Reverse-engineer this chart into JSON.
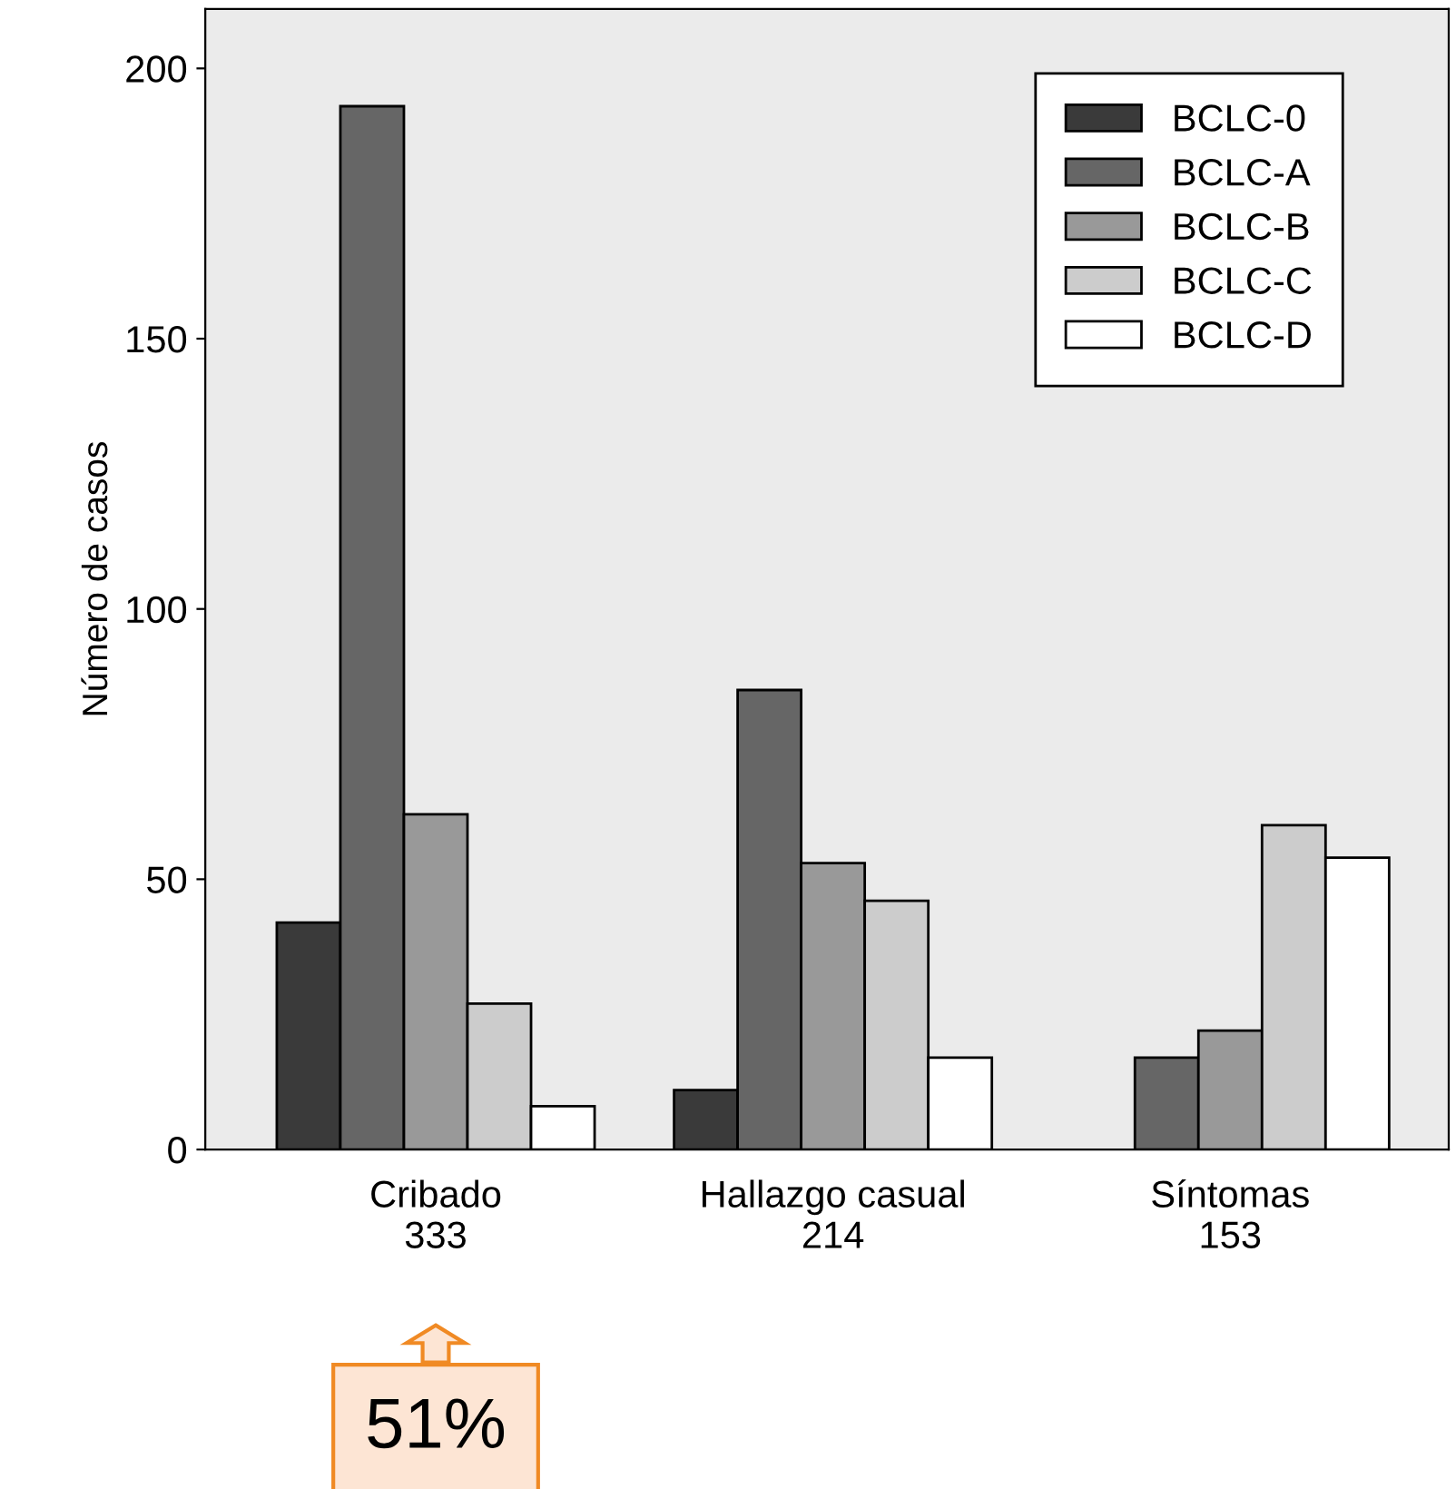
{
  "chart_data": {
    "type": "bar",
    "ylabel": "Número de casos",
    "categories": [
      "Cribado\n333",
      "Hallazgo casual\n214",
      "Síntomas\n153"
    ],
    "series": [
      {
        "name": "BCLC-0",
        "color": "#3a3a3a",
        "values": [
          42,
          11,
          null
        ]
      },
      {
        "name": "BCLC-A",
        "color": "#666666",
        "values": [
          193,
          85,
          17
        ]
      },
      {
        "name": "BCLC-B",
        "color": "#999999",
        "values": [
          62,
          53,
          22
        ]
      },
      {
        "name": "BCLC-C",
        "color": "#cccccc",
        "values": [
          27,
          46,
          60
        ]
      },
      {
        "name": "BCLC-D",
        "color": "#ffffff",
        "values": [
          8,
          17,
          54
        ]
      }
    ],
    "ylim": [
      0,
      211
    ],
    "yticks": [
      0,
      50,
      100,
      150,
      200
    ],
    "grid": false,
    "legend": "top right",
    "annotations": [
      "51%"
    ]
  }
}
